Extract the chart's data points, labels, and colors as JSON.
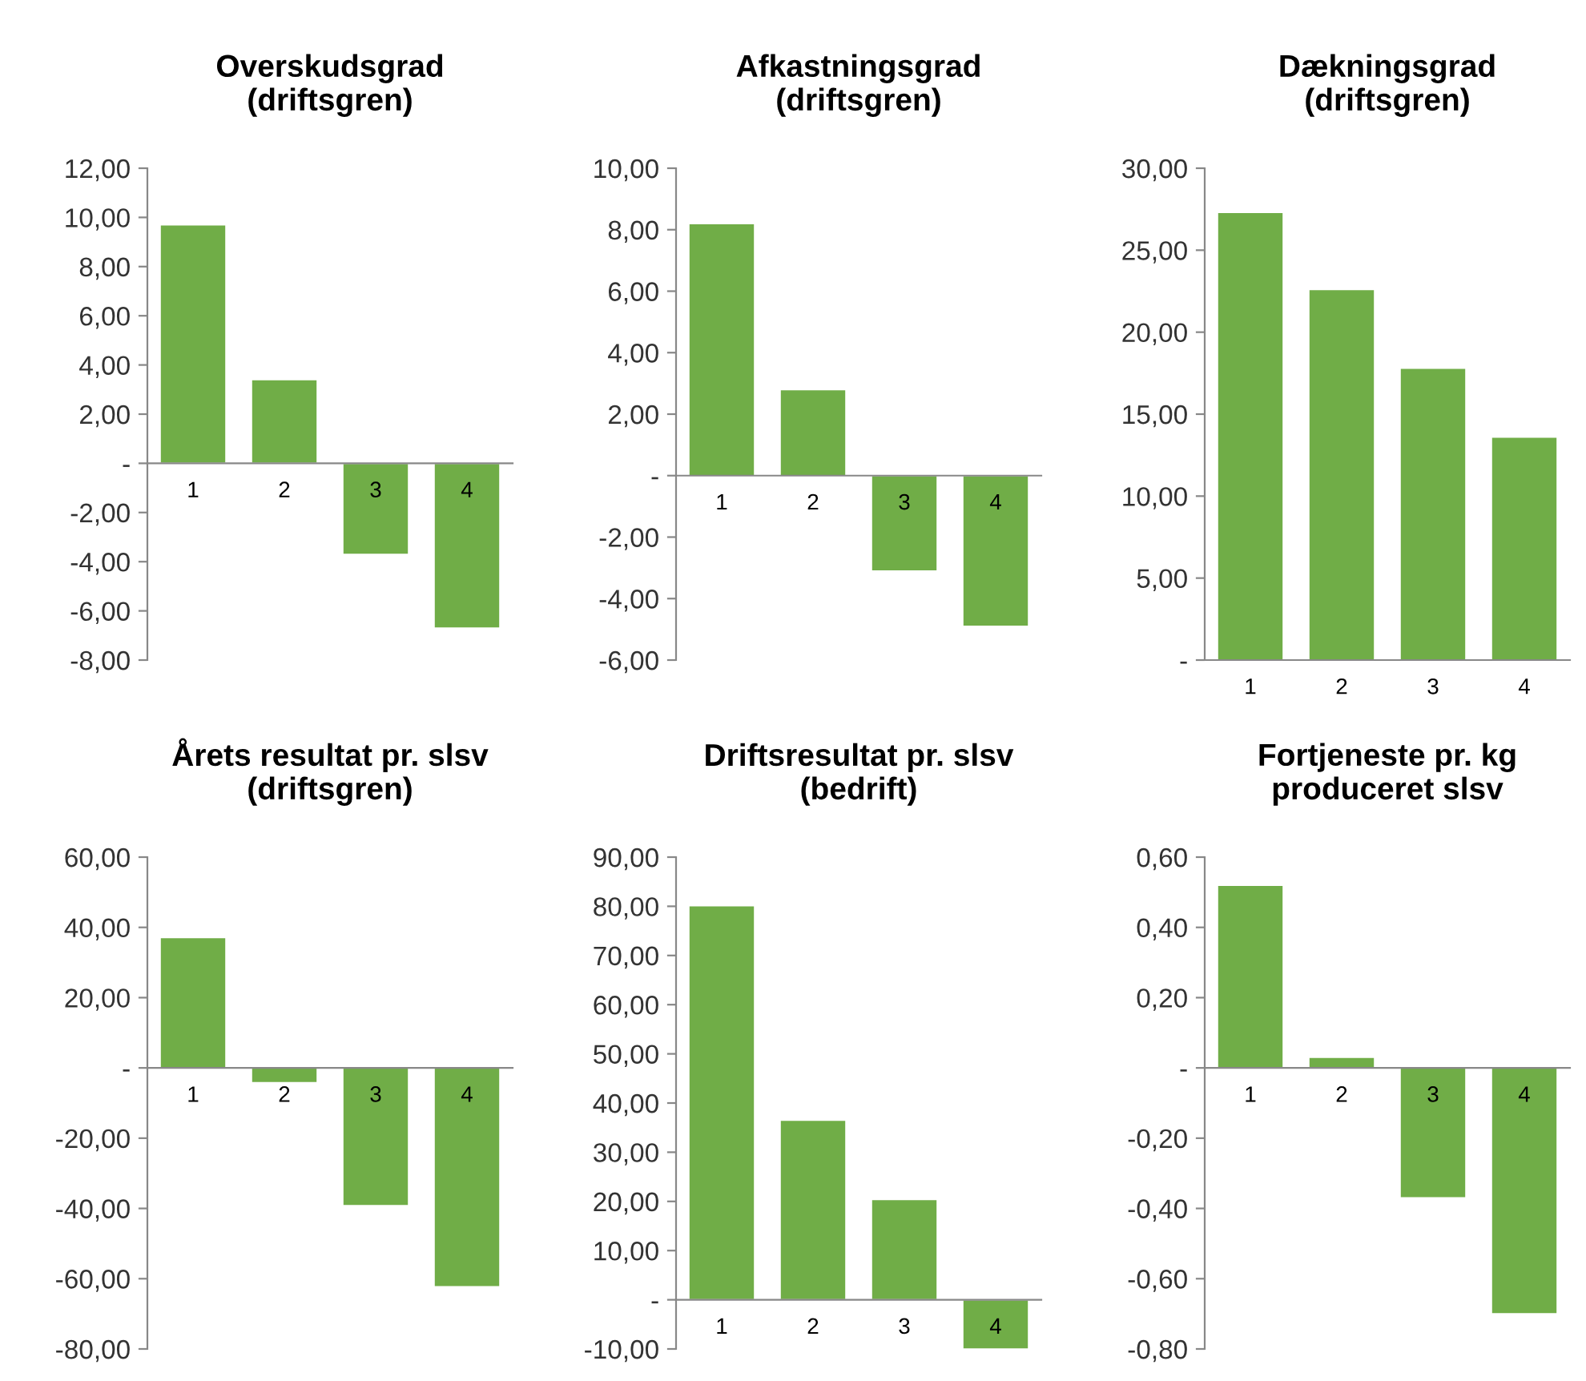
{
  "chart_data": [
    {
      "type": "bar",
      "title": "Overskudsgrad\n(driftsgren)",
      "categories": [
        "1",
        "2",
        "3",
        "4"
      ],
      "values": [
        9.7,
        3.4,
        -3.7,
        -6.7
      ],
      "color": "#70ad47",
      "ylim": [
        -8,
        12
      ],
      "yticks": [
        {
          "value": -8,
          "label": "-8,00"
        },
        {
          "value": -6,
          "label": "-6,00"
        },
        {
          "value": -4,
          "label": "-4,00"
        },
        {
          "value": -2,
          "label": "-2,00"
        },
        {
          "value": 0,
          "label": "-"
        },
        {
          "value": 2,
          "label": "2,00"
        },
        {
          "value": 4,
          "label": "4,00"
        },
        {
          "value": 6,
          "label": "6,00"
        },
        {
          "value": 8,
          "label": "8,00"
        },
        {
          "value": 10,
          "label": "10,00"
        },
        {
          "value": 12,
          "label": "12,00"
        }
      ],
      "grid": false,
      "legend": false
    },
    {
      "type": "bar",
      "title": "Afkastningsgrad\n(driftsgren)",
      "categories": [
        "1",
        "2",
        "3",
        "4"
      ],
      "values": [
        8.2,
        2.8,
        -3.1,
        -4.9
      ],
      "color": "#70ad47",
      "ylim": [
        -6,
        10
      ],
      "yticks": [
        {
          "value": -6,
          "label": "-6,00"
        },
        {
          "value": -4,
          "label": "-4,00"
        },
        {
          "value": -2,
          "label": "-2,00"
        },
        {
          "value": 0,
          "label": "-"
        },
        {
          "value": 2,
          "label": "2,00"
        },
        {
          "value": 4,
          "label": "4,00"
        },
        {
          "value": 6,
          "label": "6,00"
        },
        {
          "value": 8,
          "label": "8,00"
        },
        {
          "value": 10,
          "label": "10,00"
        }
      ],
      "grid": false,
      "legend": false
    },
    {
      "type": "bar",
      "title": "Dækningsgrad\n(driftsgren)",
      "categories": [
        "1",
        "2",
        "3",
        "4"
      ],
      "values": [
        27.3,
        22.6,
        17.8,
        13.6
      ],
      "color": "#70ad47",
      "ylim": [
        0,
        30
      ],
      "yticks": [
        {
          "value": 0,
          "label": "-"
        },
        {
          "value": 5,
          "label": "5,00"
        },
        {
          "value": 10,
          "label": "10,00"
        },
        {
          "value": 15,
          "label": "15,00"
        },
        {
          "value": 20,
          "label": "20,00"
        },
        {
          "value": 25,
          "label": "25,00"
        },
        {
          "value": 30,
          "label": "30,00"
        }
      ],
      "grid": false,
      "legend": false
    },
    {
      "type": "bar",
      "title": "Årets resultat pr. slsv\n(driftsgren)",
      "categories": [
        "1",
        "2",
        "3",
        "4"
      ],
      "values": [
        37.1,
        -4.2,
        -39.2,
        -62.3
      ],
      "color": "#70ad47",
      "ylim": [
        -80,
        60
      ],
      "yticks": [
        {
          "value": -80,
          "label": "-80,00"
        },
        {
          "value": -60,
          "label": "-60,00"
        },
        {
          "value": -40,
          "label": "-40,00"
        },
        {
          "value": -20,
          "label": "-20,00"
        },
        {
          "value": 0,
          "label": "-"
        },
        {
          "value": 20,
          "label": "20,00"
        },
        {
          "value": 40,
          "label": "40,00"
        },
        {
          "value": 60,
          "label": "60,00"
        }
      ],
      "grid": false,
      "legend": false
    },
    {
      "type": "bar",
      "title": "Driftsresultat pr. slsv\n(bedrift)",
      "categories": [
        "1",
        "2",
        "3",
        "4"
      ],
      "values": [
        80.1,
        36.5,
        20.4,
        -10
      ],
      "color": "#70ad47",
      "ylim": [
        -10,
        90
      ],
      "yticks": [
        {
          "value": -10,
          "label": "-10,00"
        },
        {
          "value": 0,
          "label": "-"
        },
        {
          "value": 10,
          "label": "10,00"
        },
        {
          "value": 20,
          "label": "20,00"
        },
        {
          "value": 30,
          "label": "30,00"
        },
        {
          "value": 40,
          "label": "40,00"
        },
        {
          "value": 50,
          "label": "50,00"
        },
        {
          "value": 60,
          "label": "60,00"
        },
        {
          "value": 70,
          "label": "70,00"
        },
        {
          "value": 80,
          "label": "80,00"
        },
        {
          "value": 90,
          "label": "90,00"
        }
      ],
      "grid": false,
      "legend": false
    },
    {
      "type": "bar",
      "title": "Fortjeneste pr. kg\nproduceret slsv",
      "categories": [
        "1",
        "2",
        "3",
        "4"
      ],
      "values": [
        0.52,
        0.03,
        -0.37,
        -0.7
      ],
      "color": "#70ad47",
      "ylim": [
        -0.8,
        0.6
      ],
      "yticks": [
        {
          "value": -0.8,
          "label": "-0,80"
        },
        {
          "value": -0.6,
          "label": "-0,60"
        },
        {
          "value": -0.4,
          "label": "-0,40"
        },
        {
          "value": -0.2,
          "label": "-0,20"
        },
        {
          "value": 0,
          "label": "-"
        },
        {
          "value": 0.2,
          "label": "0,20"
        },
        {
          "value": 0.4,
          "label": "0,40"
        },
        {
          "value": 0.6,
          "label": "0,60"
        }
      ],
      "grid": false,
      "legend": false
    }
  ]
}
